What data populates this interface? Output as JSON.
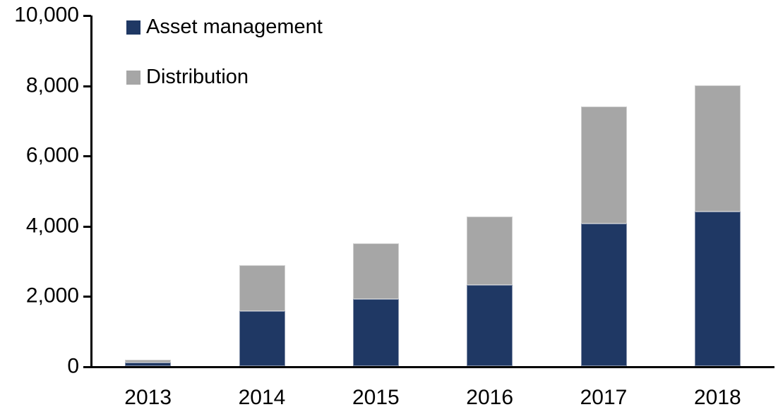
{
  "chart_data": {
    "type": "bar",
    "stacked": true,
    "title": "",
    "categories": [
      "2013",
      "2014",
      "2015",
      "2016",
      "2017",
      "2018"
    ],
    "series": [
      {
        "name": "Asset management",
        "color": "#1F3864",
        "values": [
          100,
          1560,
          1900,
          2300,
          4050,
          4400
        ]
      },
      {
        "name": "Distribution",
        "color": "#A6A6A6",
        "values": [
          90,
          1320,
          1600,
          1950,
          3330,
          3600
        ]
      }
    ],
    "totals": [
      190,
      2880,
      3500,
      4250,
      7380,
      8000
    ],
    "xlabel": "",
    "ylabel": "",
    "ylim": [
      0,
      10000
    ],
    "yticks": [
      {
        "v": 0,
        "label": "0"
      },
      {
        "v": 2000,
        "label": "2,000"
      },
      {
        "v": 4000,
        "label": "4,000"
      },
      {
        "v": 6000,
        "label": "6,000"
      },
      {
        "v": 8000,
        "label": "8,000"
      },
      {
        "v": 10000,
        "label": "10,000"
      }
    ],
    "grid": false,
    "legend_position": "top-left",
    "axis_color": "#000000",
    "background": "#FFFFFF"
  }
}
